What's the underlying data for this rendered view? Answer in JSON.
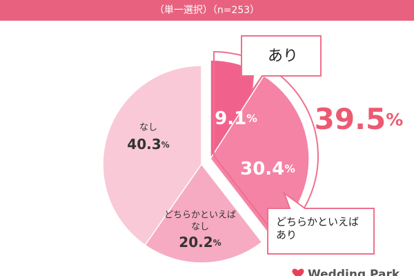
{
  "chart_data": {
    "type": "pie",
    "subtitle": "（単一選択）（n=253）",
    "categories": [
      "あり",
      "どちらかといえば\nあり",
      "どちらかといえば\nなし",
      "なし"
    ],
    "values": [
      9.1,
      30.4,
      20.2,
      40.3
    ],
    "unit": "%",
    "colors": [
      "#f0628c",
      "#f483a6",
      "#f6abc2",
      "#f9c9d7"
    ],
    "group_total": {
      "label": "あり",
      "value": 39.5
    },
    "logo": "Wedding Park"
  }
}
